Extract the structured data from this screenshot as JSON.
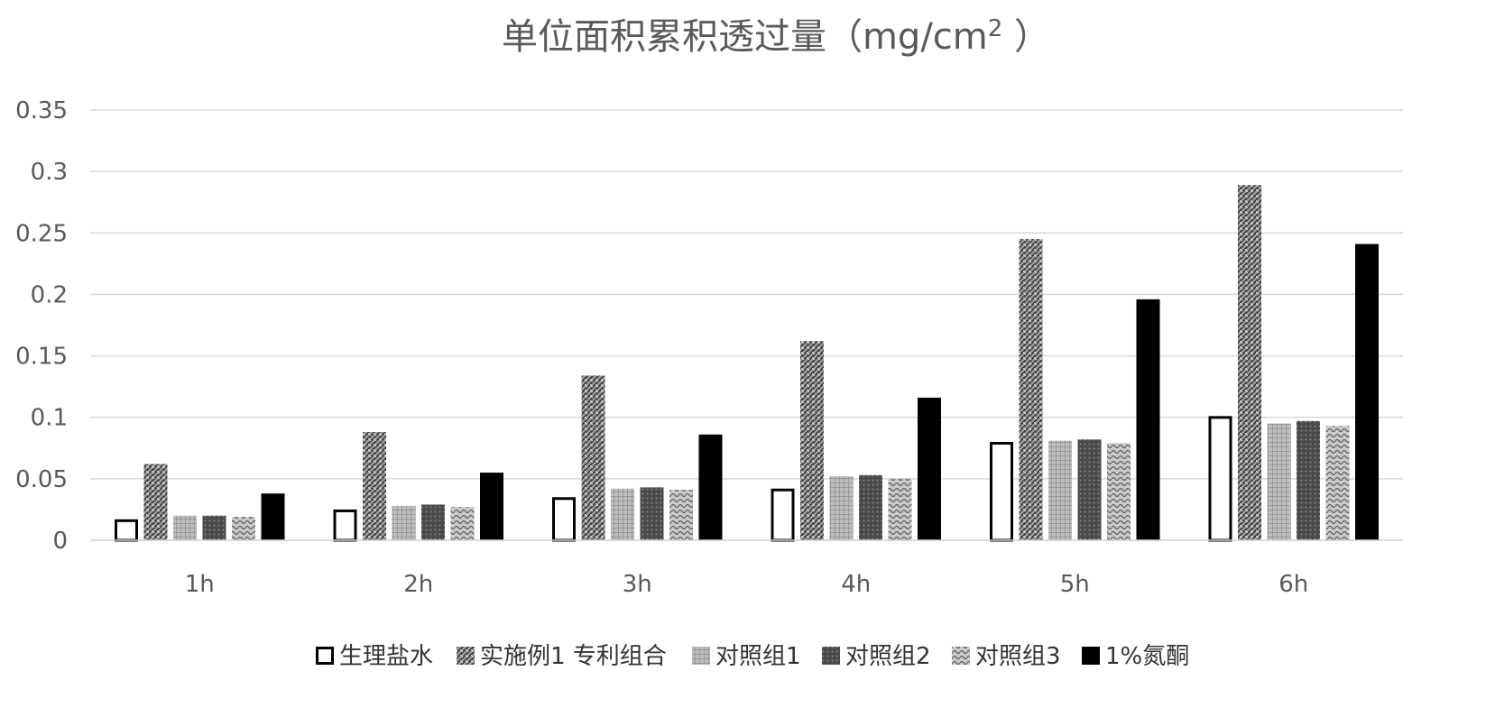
{
  "chart_data": {
    "type": "bar",
    "title": "单位面积累积透过量（mg/cm",
    "title_sup": "2",
    "title_end": " ）",
    "categories": [
      "1h",
      "2h",
      "3h",
      "4h",
      "5h",
      "6h"
    ],
    "series": [
      {
        "name": "生理盐水",
        "values": [
          0.017,
          0.025,
          0.035,
          0.042,
          0.08,
          0.101
        ],
        "fill": "#ffffff",
        "pattern": "none"
      },
      {
        "name": "实施例1 专利组合",
        "values": [
          0.062,
          0.088,
          0.134,
          0.162,
          0.245,
          0.289
        ],
        "fill": "#8c8c8c",
        "pattern": "weave-dense"
      },
      {
        "name": "对照组1",
        "values": [
          0.02,
          0.028,
          0.042,
          0.052,
          0.081,
          0.095
        ],
        "fill": "#a8a8a8",
        "pattern": "grid-light"
      },
      {
        "name": "对照组2",
        "values": [
          0.02,
          0.029,
          0.043,
          0.053,
          0.082,
          0.097
        ],
        "fill": "#555555",
        "pattern": "dots-dark"
      },
      {
        "name": "对照组3",
        "values": [
          0.019,
          0.027,
          0.041,
          0.05,
          0.079,
          0.093
        ],
        "fill": "#9a9a9a",
        "pattern": "wave-light"
      },
      {
        "name": "1%氮酮",
        "values": [
          0.038,
          0.055,
          0.086,
          0.116,
          0.196,
          0.241
        ],
        "fill": "#000000",
        "pattern": "solid"
      }
    ],
    "yticks": [
      "0",
      "0.05",
      "0.1",
      "0.15",
      "0.2",
      "0.25",
      "0.3",
      "0.35"
    ],
    "ylim": [
      0,
      0.35
    ],
    "grid": true,
    "legend_position": "bottom"
  }
}
